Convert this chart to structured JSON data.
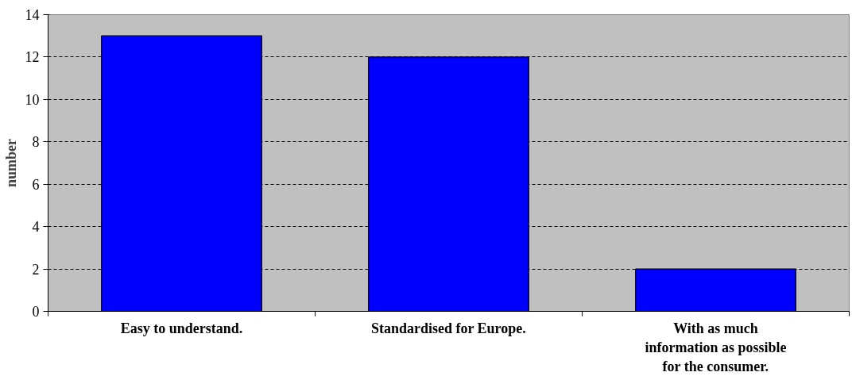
{
  "chart_data": {
    "type": "bar",
    "ylabel": "number",
    "categories": [
      "Easy to understand.",
      "Standardised for Europe.",
      "With as much information as possible for the consumer."
    ],
    "values": [
      13,
      12,
      2
    ],
    "color": "#0000ff",
    "ylim": [
      0,
      14
    ],
    "yticks": [
      0,
      2,
      4,
      6,
      8,
      10,
      12,
      14
    ],
    "grid": "y"
  }
}
